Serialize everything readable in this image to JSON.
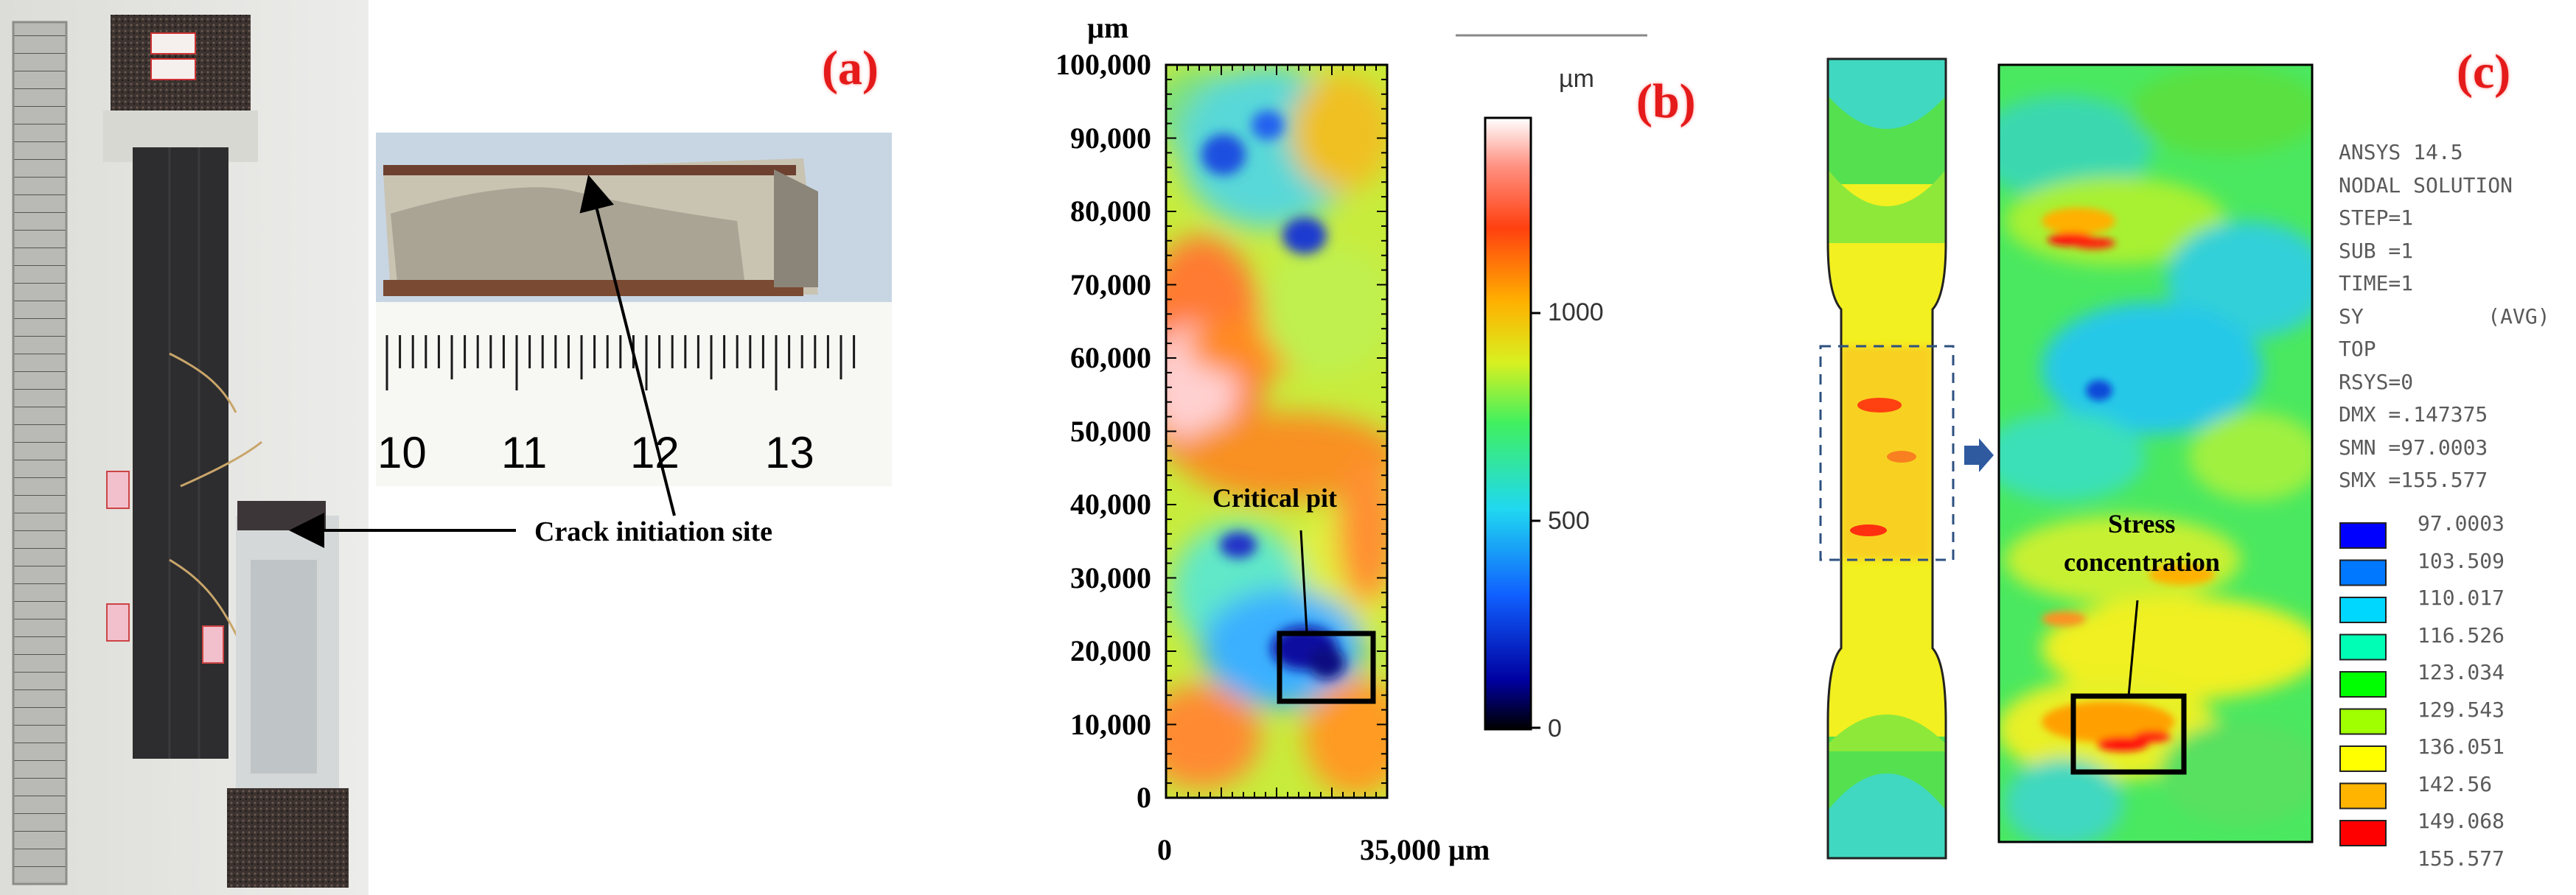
{
  "panel_a": {
    "letter": "(a)",
    "ruler_numbers": [
      "10",
      "11",
      "12",
      "13"
    ],
    "annotation": "Crack initiation site"
  },
  "panel_b": {
    "letter": "(b)",
    "y_unit": "µm",
    "x_unit": "µm",
    "y_ticks": [
      "100,000",
      "90,000",
      "80,000",
      "70,000",
      "60,000",
      "50,000",
      "40,000",
      "30,000",
      "20,000",
      "10,000",
      "0"
    ],
    "x_ticks": [
      "0",
      "35,000 µm"
    ],
    "colorbar_unit": "µm",
    "colorbar_ticks": [
      "1000",
      "500",
      "0"
    ],
    "annotation": "Critical pit"
  },
  "panel_c": {
    "letter": "(c)",
    "annotation_line1": "Stress",
    "annotation_line2": "concentration",
    "ansys_header": [
      "ANSYS 14.5",
      "NODAL SOLUTION",
      "STEP=1",
      "SUB =1",
      "TIME=1",
      "SY          (AVG)",
      "TOP",
      "RSYS=0",
      "DMX =.147375",
      "SMN =97.0003",
      "SMX =155.577"
    ],
    "legend_values": [
      "97.0003",
      "103.509",
      "110.017",
      "116.526",
      "123.034",
      "129.543",
      "136.051",
      "142.56",
      "149.068",
      "155.577"
    ],
    "legend_colors": [
      "#0000ff",
      "#0078ff",
      "#00d7ff",
      "#00ffb4",
      "#00ff00",
      "#a0ff00",
      "#ffff00",
      "#ffb400",
      "#ff0000"
    ]
  }
}
